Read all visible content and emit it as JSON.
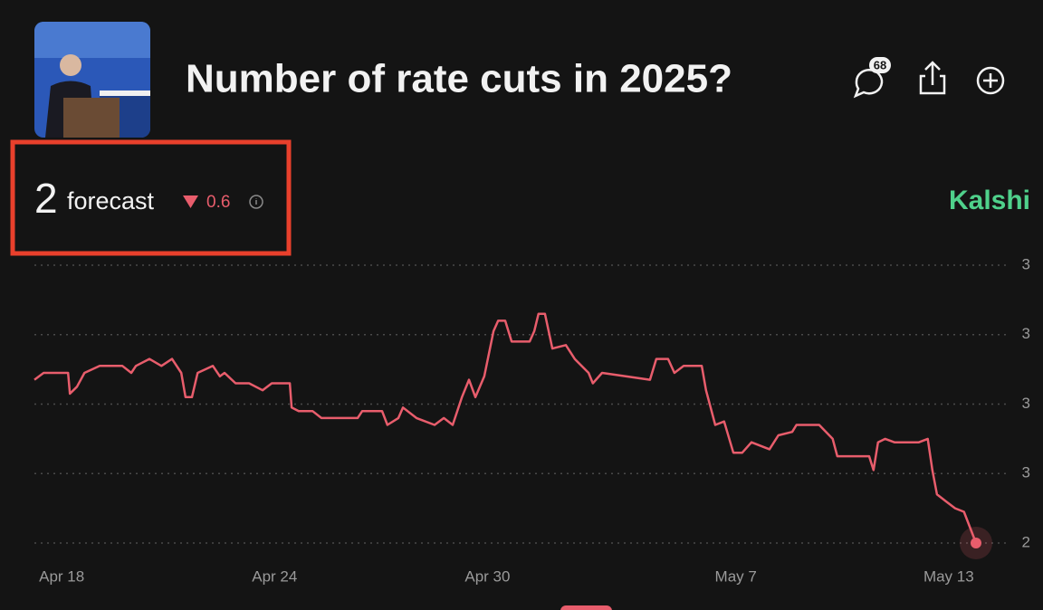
{
  "header": {
    "title": "Number of rate cuts in 2025?",
    "comments": 68
  },
  "forecast": {
    "value": 2,
    "label": "forecast",
    "change": 0.6
  },
  "brand": "Kalshi",
  "chart_data": {
    "type": "line",
    "x": [
      -0.77,
      -0.51,
      0.18,
      0.23,
      0.43,
      0.64,
      1.07,
      1.71,
      1.96,
      2.09,
      2.47,
      2.81,
      3.11,
      3.37,
      3.49,
      3.67,
      3.83,
      4.26,
      4.46,
      4.59,
      4.9,
      5.28,
      5.66,
      5.92,
      6.43,
      6.48,
      6.68,
      7.07,
      7.32,
      8.34,
      8.47,
      9.03,
      9.18,
      9.49,
      9.62,
      10.0,
      10.51,
      10.77,
      11.02,
      11.28,
      11.48,
      11.66,
      11.91,
      12.17,
      12.3,
      12.5,
      12.68,
      13.19,
      13.32,
      13.44,
      13.62,
      13.83,
      14.21,
      14.46,
      14.85,
      14.97,
      15.23,
      16.58,
      16.76,
      17.09,
      17.27,
      17.53,
      18.04,
      18.16,
      18.42,
      18.67,
      18.93,
      19.18,
      19.44,
      19.95,
      20.2,
      20.59,
      20.71,
      21.35,
      21.73,
      21.86,
      22.76,
      22.88,
      23.01,
      23.21,
      23.47,
      24.16,
      24.41,
      24.54,
      24.67,
      24.92,
      25.18,
      25.43,
      25.77
    ],
    "series": [
      {
        "color": "#e85d6c",
        "values": [
          2.87,
          2.89,
          2.89,
          2.83,
          2.85,
          2.89,
          2.91,
          2.91,
          2.89,
          2.91,
          2.93,
          2.91,
          2.93,
          2.89,
          2.82,
          2.82,
          2.89,
          2.91,
          2.88,
          2.89,
          2.86,
          2.86,
          2.84,
          2.86,
          2.86,
          2.79,
          2.78,
          2.78,
          2.76,
          2.76,
          2.78,
          2.78,
          2.74,
          2.76,
          2.79,
          2.76,
          2.74,
          2.76,
          2.74,
          2.82,
          2.87,
          2.82,
          2.88,
          3.01,
          3.04,
          3.04,
          2.98,
          2.98,
          3.01,
          3.06,
          3.06,
          2.96,
          2.97,
          2.93,
          2.89,
          2.86,
          2.89,
          2.87,
          2.93,
          2.93,
          2.89,
          2.91,
          2.91,
          2.84,
          2.74,
          2.75,
          2.66,
          2.66,
          2.69,
          2.67,
          2.71,
          2.72,
          2.74,
          2.74,
          2.7,
          2.65,
          2.65,
          2.61,
          2.69,
          2.7,
          2.69,
          2.69,
          2.7,
          2.61,
          2.54,
          2.52,
          2.5,
          2.49,
          2.4
        ]
      }
    ],
    "xlim": [
      -0.77,
      25.77
    ],
    "ylim": [
      2.4,
      3.2
    ],
    "xticks": [
      {
        "value": 0,
        "label": "Apr 18"
      },
      {
        "value": 6,
        "label": "Apr 24"
      },
      {
        "value": 12,
        "label": "Apr 30"
      },
      {
        "value": 19,
        "label": "May 7"
      },
      {
        "value": 25,
        "label": "May 13"
      }
    ],
    "yticks": [
      {
        "value": 2.4,
        "label": "2"
      },
      {
        "value": 2.6,
        "label": "3"
      },
      {
        "value": 2.8,
        "label": "3"
      },
      {
        "value": 3.0,
        "label": "3"
      },
      {
        "value": 3.2,
        "label": "3"
      }
    ],
    "grid": true
  }
}
